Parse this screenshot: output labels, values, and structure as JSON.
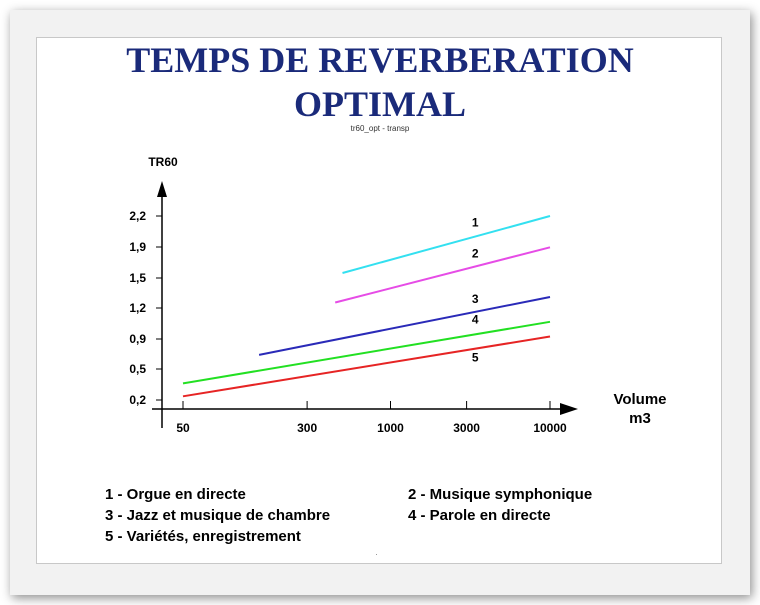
{
  "title_line1": "TEMPS DE REVERBERATION",
  "title_line2": "OPTIMAL",
  "subtitle": "tr60_opt - transp",
  "chart_data": {
    "type": "line",
    "ylabel": "TR60",
    "xlabel_line1": "Volume",
    "xlabel_line2": "m3",
    "xticks": [
      "50",
      "300",
      "1000",
      "3000",
      "10000"
    ],
    "yticks": [
      "2,2",
      "1,9",
      "1,5",
      "1,2",
      "0,9",
      "0,5",
      "0,2"
    ],
    "x_scale": "log",
    "series": [
      {
        "name": "1",
        "color": "#33e0f0",
        "x": [
          500,
          10000
        ],
        "y": [
          1.58,
          2.2
        ]
      },
      {
        "name": "2",
        "color": "#e64ce6",
        "x": [
          450,
          10000
        ],
        "y": [
          1.26,
          1.86
        ]
      },
      {
        "name": "3",
        "color": "#2a2ab8",
        "x": [
          150,
          10000
        ],
        "y": [
          0.69,
          1.32
        ]
      },
      {
        "name": "4",
        "color": "#22e022",
        "x": [
          50,
          10000
        ],
        "y": [
          0.38,
          1.05
        ]
      },
      {
        "name": "5",
        "color": "#e62424",
        "x": [
          50,
          10000
        ],
        "y": [
          0.24,
          0.89
        ]
      }
    ]
  },
  "legend": [
    "1 - Orgue en directe",
    "2 - Musique symphonique",
    "3 - Jazz et musique de chambre",
    "4 - Parole en directe",
    "5 - Variétés, enregistrement"
  ]
}
